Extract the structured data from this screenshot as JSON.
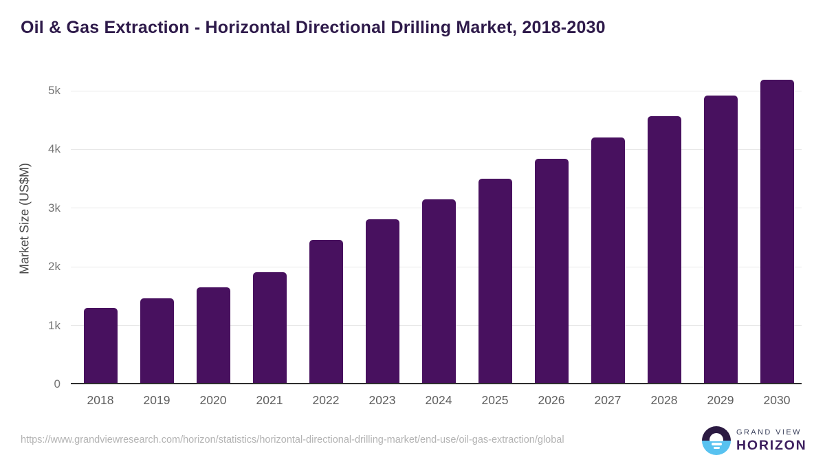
{
  "chart_data": {
    "type": "bar",
    "title": "Oil & Gas Extraction - Horizontal Directional Drilling Market, 2018-2030",
    "categories": [
      "2018",
      "2019",
      "2020",
      "2021",
      "2022",
      "2023",
      "2024",
      "2025",
      "2026",
      "2027",
      "2028",
      "2029",
      "2030"
    ],
    "values": [
      1305,
      1460,
      1650,
      1910,
      2460,
      2810,
      3155,
      3500,
      3840,
      4205,
      4565,
      4915,
      5190
    ],
    "xlabel": "",
    "ylabel": "Market Size (US$M)",
    "ylim": [
      0,
      5500
    ],
    "yticks": [
      {
        "v": 0,
        "label": "0"
      },
      {
        "v": 1000,
        "label": "1k"
      },
      {
        "v": 2000,
        "label": "2k"
      },
      {
        "v": 3000,
        "label": "3k"
      },
      {
        "v": 4000,
        "label": "4k"
      },
      {
        "v": 5000,
        "label": "5k"
      }
    ],
    "grid": true,
    "legend": "none"
  },
  "colors": {
    "bar": "#48115f",
    "title_text": "#2e1a4a",
    "gridline": "#e8e8e8",
    "axis_line": "#2e2e2e",
    "y_tick_text": "#757575",
    "x_tick_text": "#5f5f5f",
    "logo_circle_top": "#2b1a42",
    "logo_circle_bottom": "#58c2f0",
    "logo_navy": "#3b415c",
    "logo_purple": "#3e2060"
  },
  "footer": {
    "source_url": "https://www.grandviewresearch.com/horizon/statistics/horizontal-directional-drilling-market/end-use/oil-gas-extraction/global",
    "brand_line1": "GRAND VIEW",
    "brand_line2": "HORIZON"
  }
}
